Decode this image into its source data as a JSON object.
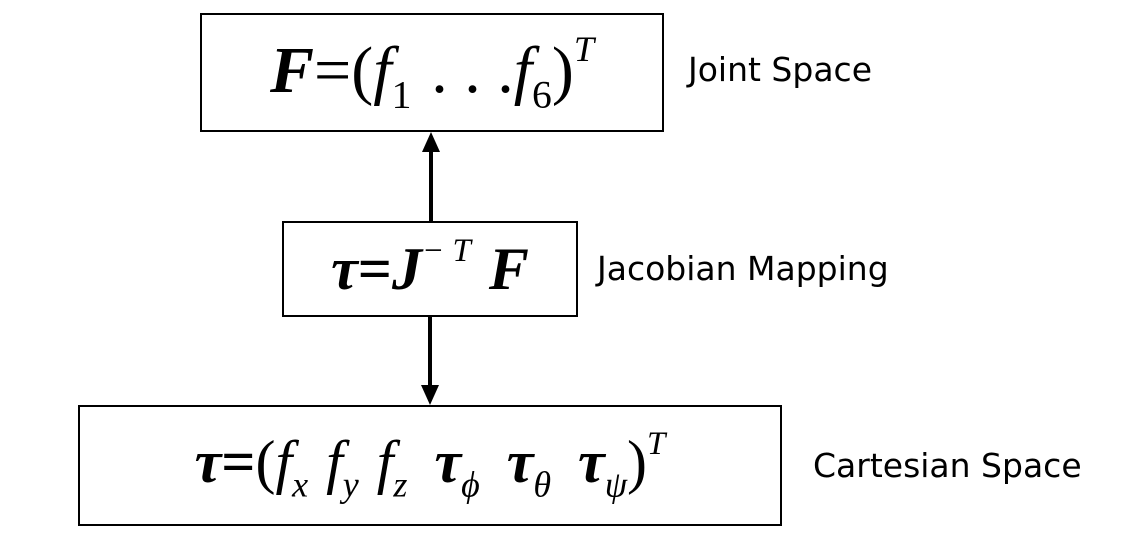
{
  "boxes": {
    "joint": {
      "lhs": "F",
      "eq": "=",
      "open": "(",
      "f1": "f",
      "f1_sub": "1",
      "dots": ". . .",
      "f6": "f",
      "f6_sub": "6",
      "close": ")",
      "sup": "T"
    },
    "jacobian": {
      "tau": "τ",
      "eq": "=",
      "j": "J",
      "sup": "− T",
      "f": "F"
    },
    "cartesian": {
      "tau": "τ",
      "eq": "=",
      "open": "(",
      "fx": "f",
      "fx_sub": "x",
      "fy": "f",
      "fy_sub": "y",
      "fz": "f",
      "fz_sub": "z",
      "tphi": "τ",
      "tphi_sub": "ϕ",
      "ttheta": "τ",
      "ttheta_sub": "θ",
      "tpsi": "τ",
      "tpsi_sub": "ψ",
      "close": ")",
      "sup": "T"
    }
  },
  "labels": {
    "joint": "Joint Space",
    "jacobian": "Jacobian Mapping",
    "cartesian": "Cartesian Space"
  }
}
